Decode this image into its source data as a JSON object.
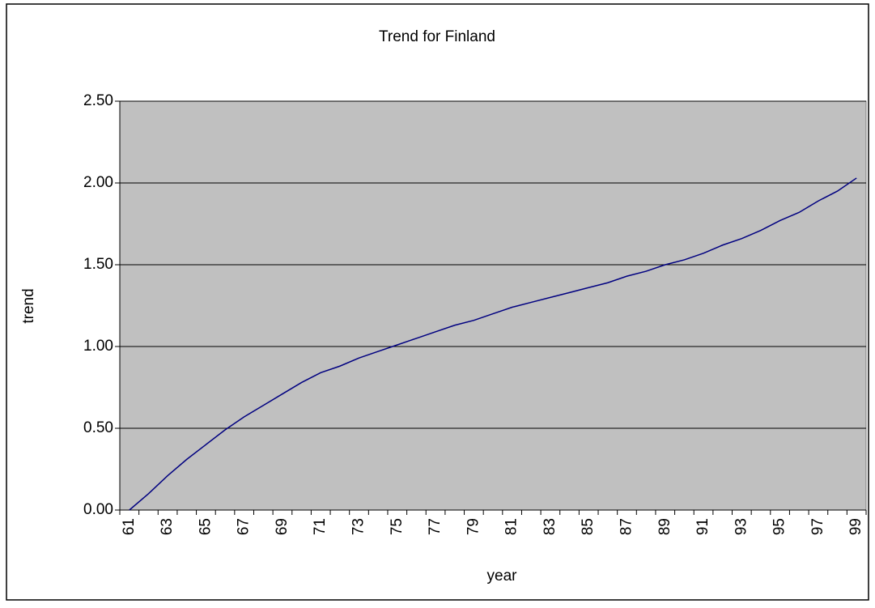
{
  "chart_data": {
    "type": "line",
    "title": "Trend for Finland",
    "x_label": "year",
    "y_label": "trend",
    "categories": [
      "61",
      null,
      "63",
      null,
      "65",
      null,
      "67",
      null,
      "69",
      null,
      "71",
      null,
      "73",
      null,
      "75",
      null,
      "77",
      null,
      "79",
      null,
      "81",
      null,
      "83",
      null,
      "85",
      null,
      "87",
      null,
      "89",
      null,
      "91",
      null,
      "93",
      null,
      "95",
      null,
      "97",
      null,
      "99"
    ],
    "series": [
      {
        "name": "trend",
        "color": "#000080",
        "values": [
          0.0,
          0.1,
          0.21,
          0.31,
          0.4,
          0.49,
          0.57,
          0.64,
          0.71,
          0.78,
          0.84,
          0.88,
          0.93,
          0.97,
          1.01,
          1.05,
          1.09,
          1.13,
          1.16,
          1.2,
          1.24,
          1.27,
          1.3,
          1.33,
          1.36,
          1.39,
          1.43,
          1.46,
          1.5,
          1.53,
          1.57,
          1.62,
          1.66,
          1.71,
          1.77,
          1.82,
          1.89,
          1.95,
          2.03
        ]
      }
    ],
    "ylim": [
      0,
      2.5
    ],
    "yticks": [
      {
        "value": 0,
        "label": "0.00"
      },
      {
        "value": 0.5,
        "label": "0.50"
      },
      {
        "value": 1,
        "label": "1.00"
      },
      {
        "value": 1.5,
        "label": "1.50"
      },
      {
        "value": 2,
        "label": "2.00"
      },
      {
        "value": 2.5,
        "label": "2.50"
      }
    ],
    "grid": true,
    "plot_background": "#c0c0c0"
  }
}
